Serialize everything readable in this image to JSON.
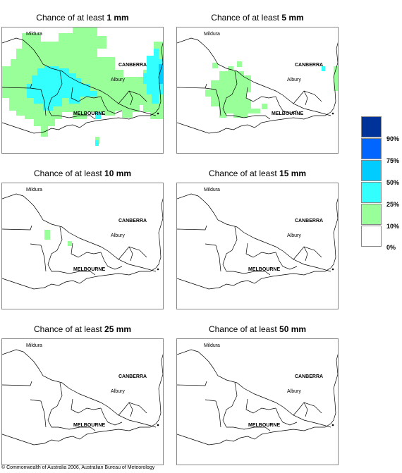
{
  "panels": [
    {
      "title_prefix": "Chance of at least ",
      "amount": "1 mm"
    },
    {
      "title_prefix": "Chance of at least ",
      "amount": "5 mm"
    },
    {
      "title_prefix": "Chance of at least ",
      "amount": "10 mm"
    },
    {
      "title_prefix": "Chance of at least ",
      "amount": "15 mm"
    },
    {
      "title_prefix": "Chance of at least ",
      "amount": "25 mm"
    },
    {
      "title_prefix": "Chance of at least ",
      "amount": "50 mm"
    }
  ],
  "places": {
    "mildura": "Mildura",
    "canberra": "CANBERRA",
    "albury": "Albury",
    "melbourne": "MELBOURNE"
  },
  "legend": {
    "labels": [
      "90%",
      "75%",
      "50%",
      "25%",
      "10%",
      "0%"
    ],
    "colors": [
      "#003399",
      "#0066ff",
      "#00ccff",
      "#33ffff",
      "#99ff99",
      "#ffffff"
    ]
  },
  "copyright": "© Commonwealth of Australia 2006, Australian Bureau of Meteorology"
}
